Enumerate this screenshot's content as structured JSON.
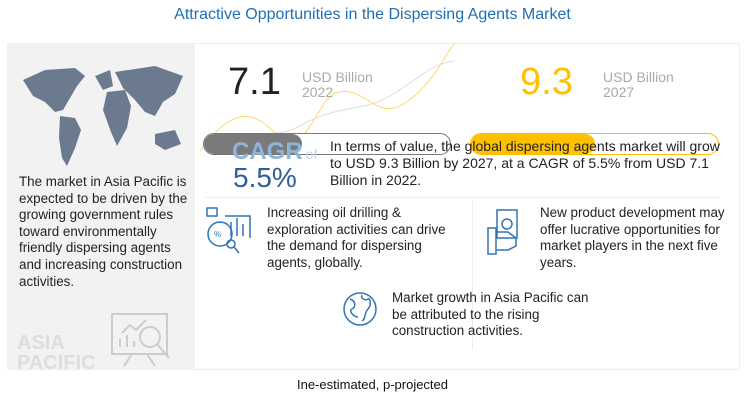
{
  "title": "Attractive Opportunities in the Dispersing Agents Market",
  "left": {
    "text": "The market in Asia Pacific is expected to be driven by the growing government rules toward environmentally friendly dispersing agents and increasing construction activities.",
    "watermark_1": "ASIA",
    "watermark_2": "PACIFIC"
  },
  "stat2022": {
    "value": "7.1",
    "unit": "USD Billion",
    "year": "2022",
    "bar_fill_pct": 40,
    "color": "#7a7a7a"
  },
  "stat2027": {
    "value": "9.3",
    "unit": "USD Billion",
    "year": "2027",
    "bar_fill_pct": 50,
    "color": "#ffc000"
  },
  "cagr": {
    "label": "CAGR",
    "of": "of",
    "value": "5.5%"
  },
  "summary": "In terms of value, the global dispersing agents market will grow to USD 9.3 Billion by 2027, at a CAGR of 5.5% from USD 7.1 Billion in 2022.",
  "items": [
    {
      "icon": "analytics-icon",
      "text": "Increasing oil drilling & exploration activities can drive the demand for dispersing agents, globally."
    },
    {
      "icon": "money-hand-icon",
      "text": "New product development may offer lucrative opportunities for market players in the next five years."
    },
    {
      "icon": "globe-icon",
      "text": "Market growth in Asia Pacific can be attributed to the rising construction activities."
    }
  ],
  "footnote": "Ine-estimated, p-projected"
}
